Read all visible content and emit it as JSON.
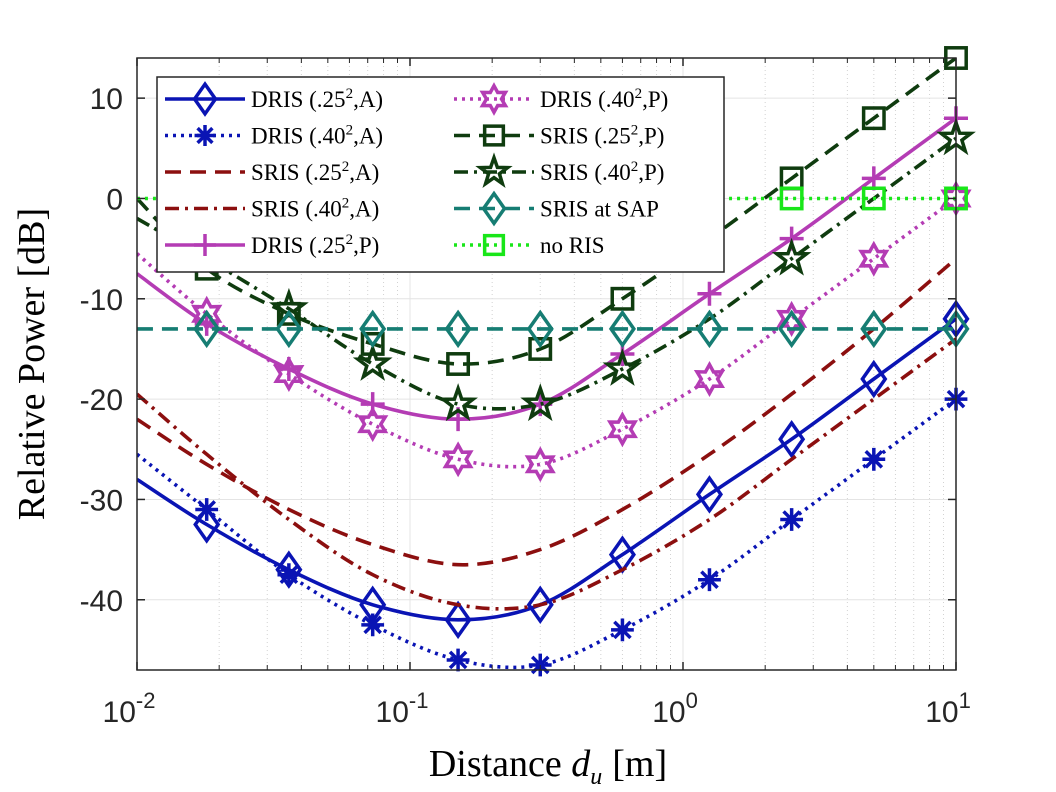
{
  "chart_data": {
    "type": "line",
    "xscale": "log",
    "xlabel": "Distance",
    "xlabel_var": "d",
    "xlabel_sub": "u",
    "xlabel_unit": "[m]",
    "ylabel": "Relative Power [dB]",
    "xlim": [
      0.01,
      10
    ],
    "ylim": [
      -47,
      14
    ],
    "yticks": [
      10,
      0,
      -10,
      -20,
      -30,
      -40
    ],
    "ytick_labels": [
      "10",
      "0",
      "-10",
      "-20",
      "-30",
      "-40"
    ],
    "xticks": [
      0.01,
      0.1,
      1,
      10
    ],
    "xtick_labels": [
      {
        "base": "10",
        "exp": "-2"
      },
      {
        "base": "10",
        "exp": "-1"
      },
      {
        "base": "10",
        "exp": "0"
      },
      {
        "base": "10",
        "exp": "1"
      }
    ],
    "grid": true,
    "legend_position": "top-left",
    "series": [
      {
        "name": "DRIS (.25",
        "exp": "2",
        "tail": ",A)",
        "color": "#0a14b4",
        "dash": "solid",
        "marker": "diamond",
        "x": [
          0.01,
          0.018,
          0.036,
          0.073,
          0.15,
          0.3,
          0.6,
          1.25,
          2.5,
          5,
          10
        ],
        "y": [
          -28,
          -32.5,
          -37,
          -40.5,
          -42,
          -40.5,
          -35.5,
          -29.5,
          -24,
          -18,
          -12
        ],
        "mx": [
          0.018,
          0.036,
          0.073,
          0.15,
          0.3,
          0.6,
          1.25,
          2.5,
          5,
          10
        ],
        "my": [
          -32.5,
          -37,
          -40.5,
          -42,
          -40.5,
          -35.5,
          -29.5,
          -24,
          -18,
          -12
        ]
      },
      {
        "name": "DRIS (.40",
        "exp": "2",
        "tail": ",A)",
        "color": "#0a14b4",
        "dash": "dotted",
        "marker": "asterisk",
        "x": [
          0.01,
          0.018,
          0.036,
          0.073,
          0.15,
          0.3,
          0.6,
          1.25,
          2.5,
          5,
          10
        ],
        "y": [
          -25.5,
          -31,
          -37.5,
          -42.5,
          -46,
          -46.5,
          -43,
          -38,
          -32,
          -26,
          -20
        ],
        "mx": [
          0.018,
          0.036,
          0.073,
          0.15,
          0.3,
          0.6,
          1.25,
          2.5,
          5,
          10
        ],
        "my": [
          -31,
          -37.5,
          -42.5,
          -46,
          -46.5,
          -43,
          -38,
          -32,
          -26,
          -20
        ]
      },
      {
        "name": "SRIS (.25",
        "exp": "2",
        "tail": ",A)",
        "color": "#8c0f0f",
        "dash": "dashed",
        "marker": "none",
        "x": [
          0.01,
          0.018,
          0.036,
          0.073,
          0.15,
          0.3,
          0.6,
          1.25,
          2.5,
          5,
          10
        ],
        "y": [
          -22,
          -26.5,
          -31,
          -34.5,
          -36.5,
          -35,
          -31,
          -25.5,
          -19.5,
          -13,
          -6
        ]
      },
      {
        "name": "SRIS (.40",
        "exp": "2",
        "tail": ",A)",
        "color": "#8c0f0f",
        "dash": "dashdot",
        "marker": "none",
        "x": [
          0.01,
          0.018,
          0.036,
          0.073,
          0.15,
          0.3,
          0.6,
          1.25,
          2.5,
          5,
          10
        ],
        "y": [
          -19.5,
          -25.5,
          -32,
          -37.5,
          -40.5,
          -40.5,
          -37,
          -32,
          -26,
          -20,
          -14
        ]
      },
      {
        "name": "DRIS (.25",
        "exp": "2",
        "tail": ",P)",
        "color": "#b43cb4",
        "dash": "solid",
        "marker": "plus",
        "x": [
          0.01,
          0.018,
          0.036,
          0.073,
          0.15,
          0.3,
          0.6,
          1.25,
          2.5,
          5,
          10
        ],
        "y": [
          -7.5,
          -12.5,
          -17,
          -20.5,
          -22,
          -20.5,
          -15.5,
          -9.5,
          -4,
          2,
          8
        ],
        "mx": [
          0.018,
          0.036,
          0.073,
          0.15,
          0.3,
          0.6,
          1.25,
          2.5,
          5,
          10
        ],
        "my": [
          -12.5,
          -17,
          -20.5,
          -22,
          -20.5,
          -15.5,
          -9.5,
          -4,
          2,
          8
        ]
      },
      {
        "name": "DRIS (.40",
        "exp": "2",
        "tail": ",P)",
        "color": "#b43cb4",
        "dash": "dotted",
        "marker": "hexagram",
        "x": [
          0.01,
          0.018,
          0.036,
          0.073,
          0.15,
          0.3,
          0.6,
          1.25,
          2.5,
          5,
          10
        ],
        "y": [
          -5.5,
          -11.5,
          -17.5,
          -22.5,
          -26,
          -26.5,
          -23,
          -18,
          -12,
          -6,
          0
        ],
        "mx": [
          0.018,
          0.036,
          0.073,
          0.15,
          0.3,
          0.6,
          1.25,
          2.5,
          5,
          10
        ],
        "my": [
          -11.5,
          -17.5,
          -22.5,
          -26,
          -26.5,
          -23,
          -18,
          -12,
          -6,
          0
        ]
      },
      {
        "name": "SRIS (.25",
        "exp": "2",
        "tail": ",P)",
        "color": "#0f3c0f",
        "dash": "dashed",
        "marker": "square",
        "x": [
          0.01,
          0.018,
          0.036,
          0.073,
          0.15,
          0.3,
          0.6,
          1.25,
          2.5,
          5,
          10
        ],
        "y": [
          0,
          -7,
          -11.5,
          -14.5,
          -16.5,
          -15,
          -10,
          -4,
          2,
          8,
          14
        ],
        "mx": [
          0.018,
          0.036,
          0.073,
          0.15,
          0.3,
          0.6,
          1.25,
          2.5,
          5,
          10
        ],
        "my": [
          -7,
          -11.5,
          -14.5,
          -16.5,
          -15,
          -10,
          -4,
          2,
          8,
          14
        ]
      },
      {
        "name": "SRIS (.40",
        "exp": "2",
        "tail": ",P)",
        "color": "#0f3c0f",
        "dash": "dashdot",
        "marker": "pentagram",
        "x": [
          0.01,
          0.018,
          0.036,
          0.073,
          0.15,
          0.3,
          0.6,
          1.25,
          2.5,
          5,
          10
        ],
        "y": [
          -2,
          -6,
          -11,
          -16.5,
          -20.5,
          -20.5,
          -17,
          -12,
          -6,
          0,
          6
        ],
        "mx": [
          0.036,
          0.073,
          0.15,
          0.3,
          0.6,
          2.5,
          10
        ],
        "my": [
          -11,
          -16.5,
          -20.5,
          -20.5,
          -17,
          -6,
          6
        ]
      },
      {
        "name": "SRIS at SAP",
        "exp": "",
        "tail": "",
        "color": "#167d73",
        "dash": "dashed",
        "marker": "diamond",
        "x": [
          0.01,
          10
        ],
        "y": [
          -13,
          -13
        ],
        "mx": [
          0.018,
          0.036,
          0.073,
          0.15,
          0.3,
          0.6,
          1.25,
          2.5,
          5,
          10
        ],
        "my": [
          -13,
          -13,
          -13,
          -13,
          -13,
          -13,
          -13,
          -13,
          -13,
          -13
        ]
      },
      {
        "name": "no RIS",
        "exp": "",
        "tail": "",
        "color": "#19e619",
        "dash": "dotted",
        "marker": "square",
        "x": [
          0.01,
          10
        ],
        "y": [
          0,
          0
        ],
        "mx": [
          2.5,
          5,
          10
        ],
        "my": [
          0,
          0,
          0
        ]
      }
    ]
  }
}
